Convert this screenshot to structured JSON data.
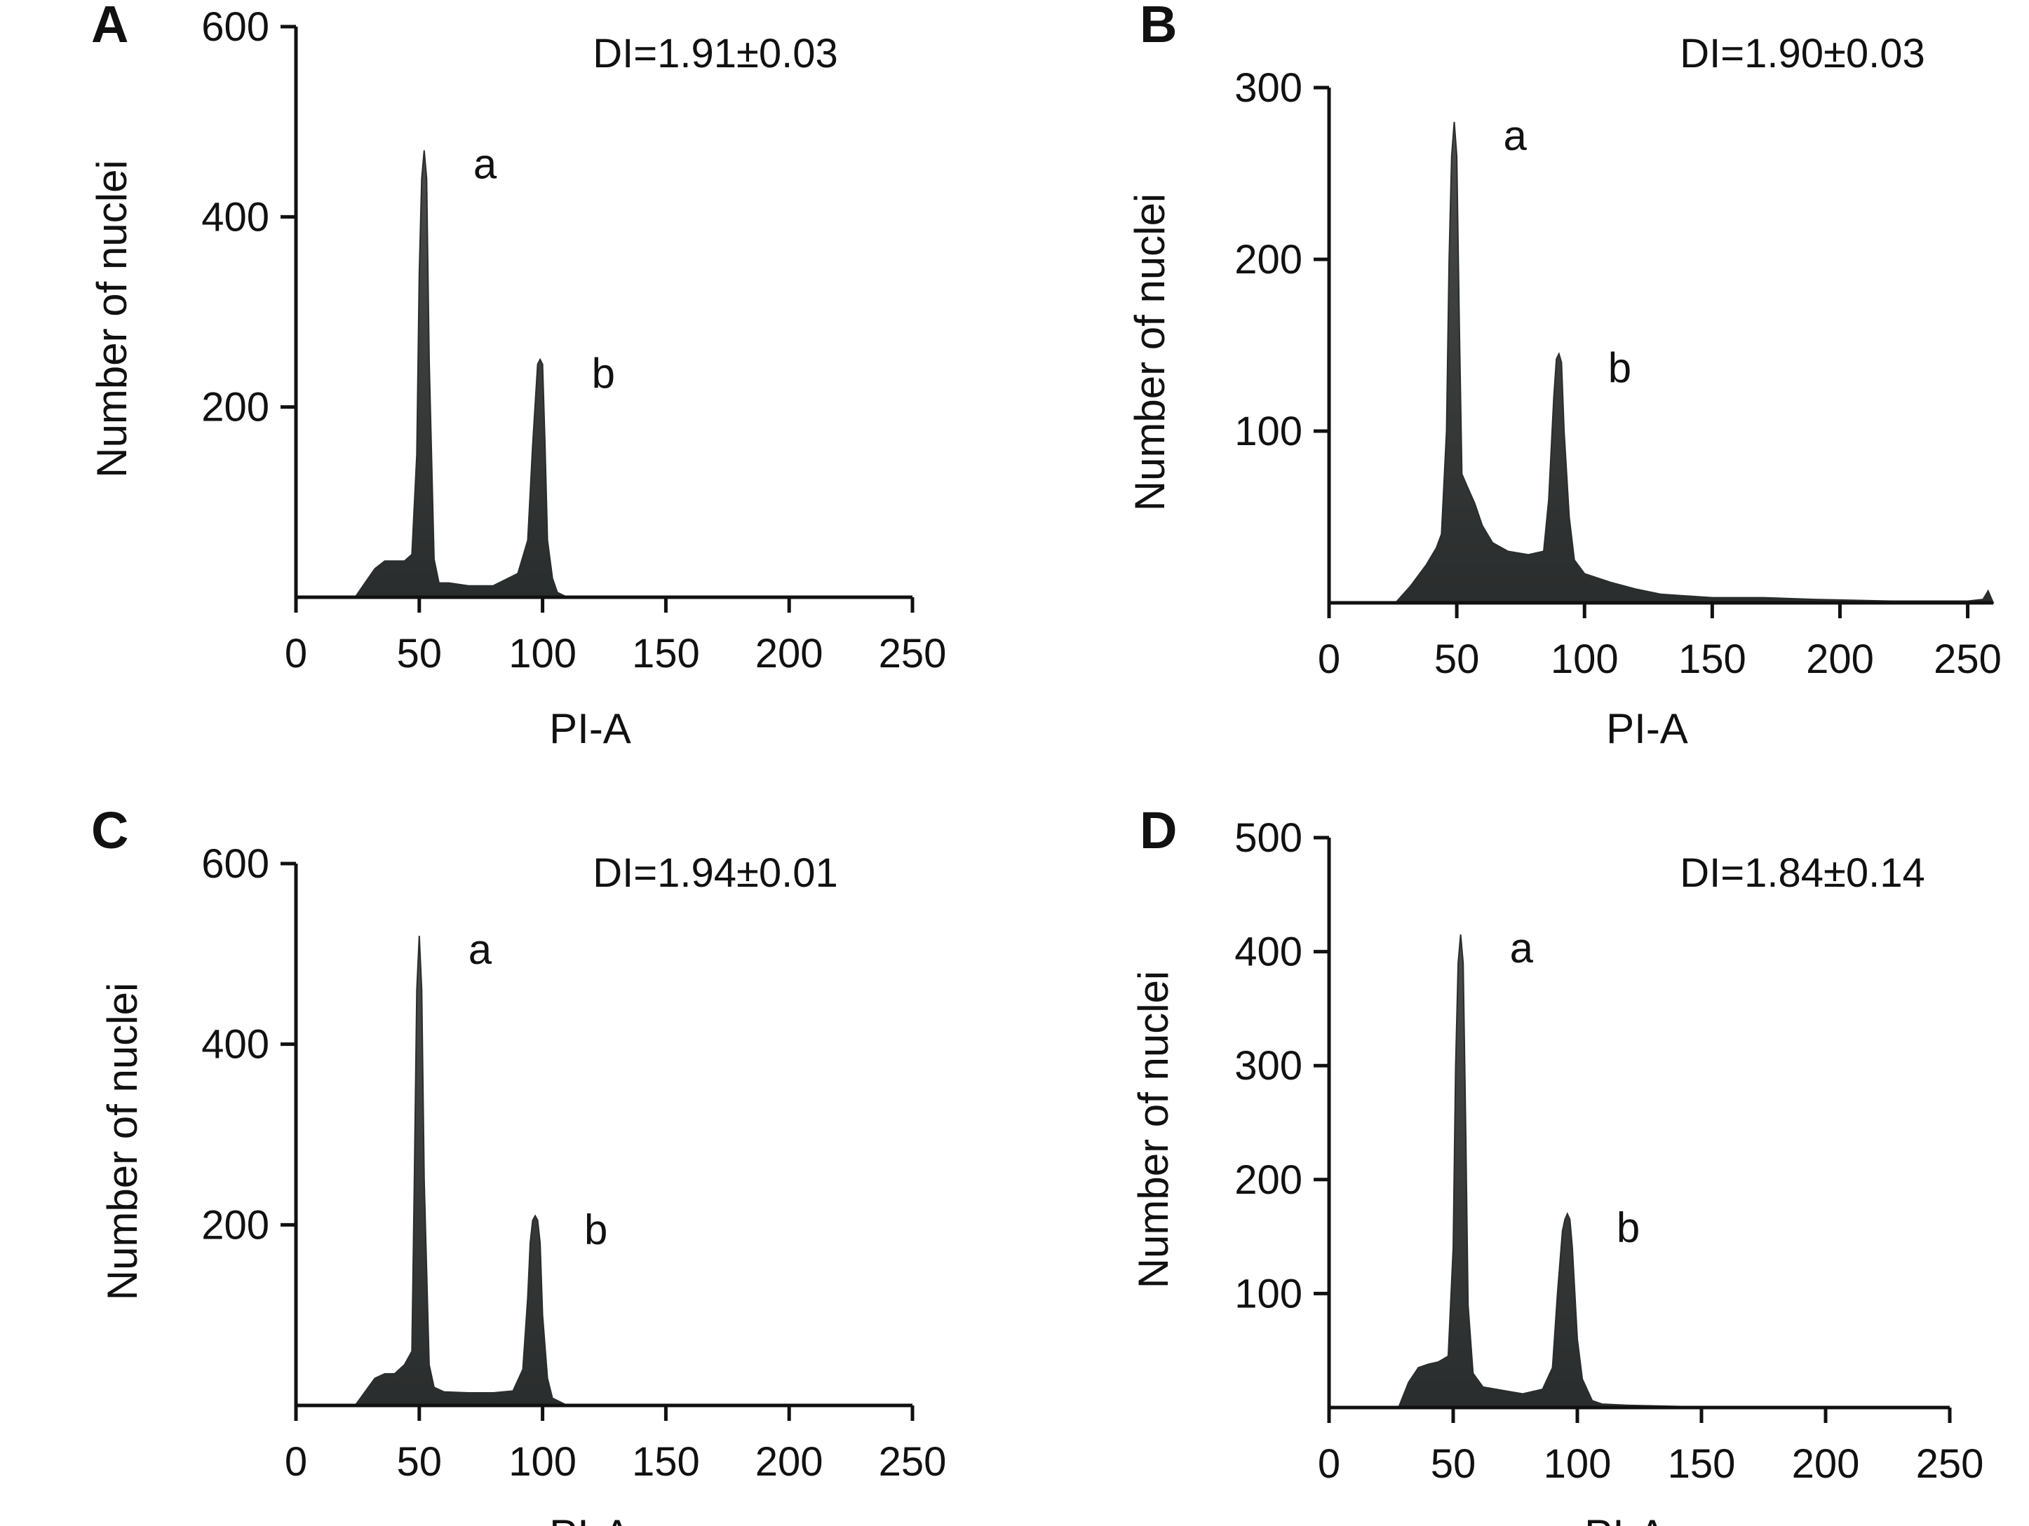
{
  "chart_data": [
    {
      "type": "area",
      "panel": "A",
      "annotation": "DI=1.91±0.03",
      "xlabel": "PI-A",
      "ylabel": "Number of nuclei",
      "xlim": [
        0,
        250
      ],
      "ylim": [
        0,
        600
      ],
      "xticks": [
        0,
        50,
        100,
        150,
        200,
        250
      ],
      "yticks": [
        200,
        400,
        600
      ],
      "peaks": [
        {
          "label": "a",
          "x": 52,
          "y": 470
        },
        {
          "label": "b",
          "x": 100,
          "y": 250
        }
      ],
      "x": [
        0,
        24,
        28,
        32,
        36,
        40,
        44,
        47,
        49,
        50,
        51,
        52,
        53,
        54,
        56,
        58,
        62,
        70,
        80,
        90,
        94,
        96,
        98,
        99,
        100,
        101,
        102,
        104,
        106,
        110,
        120,
        250
      ],
      "y": [
        0,
        0,
        15,
        30,
        38,
        38,
        38,
        45,
        150,
        340,
        440,
        470,
        440,
        250,
        40,
        15,
        15,
        12,
        12,
        25,
        60,
        160,
        245,
        250,
        245,
        160,
        60,
        20,
        5,
        0,
        0,
        0
      ]
    },
    {
      "type": "area",
      "panel": "B",
      "annotation": "DI=1.90±0.03",
      "xlabel": "PI-A",
      "ylabel": "Number of nuclei",
      "xlim": [
        0,
        260
      ],
      "ylim": [
        0,
        300
      ],
      "xticks": [
        0,
        50,
        100,
        150,
        200,
        250
      ],
      "yticks": [
        100,
        200,
        300
      ],
      "peaks": [
        {
          "label": "a",
          "x": 49,
          "y": 280
        },
        {
          "label": "b",
          "x": 90,
          "y": 145
        }
      ],
      "x": [
        0,
        26,
        32,
        38,
        42,
        44,
        46,
        47,
        48,
        49,
        50,
        51,
        52,
        54,
        57,
        60,
        64,
        70,
        78,
        84,
        86,
        88,
        89,
        90,
        91,
        92,
        94,
        96,
        100,
        110,
        120,
        130,
        140,
        150,
        170,
        190,
        220,
        250,
        256,
        258,
        260
      ],
      "y": [
        0,
        0,
        10,
        22,
        32,
        40,
        100,
        200,
        260,
        280,
        260,
        160,
        75,
        68,
        58,
        45,
        35,
        30,
        28,
        30,
        60,
        120,
        142,
        145,
        140,
        100,
        50,
        25,
        17,
        12,
        8,
        5,
        4,
        3,
        3,
        2,
        1,
        1,
        2,
        7,
        0
      ]
    },
    {
      "type": "area",
      "panel": "C",
      "annotation": "DI=1.94±0.01",
      "xlabel": "PI-A",
      "ylabel": "Number of nuclei",
      "xlim": [
        0,
        250
      ],
      "ylim": [
        0,
        600
      ],
      "xticks": [
        0,
        50,
        100,
        150,
        200,
        250
      ],
      "yticks": [
        200,
        400,
        600
      ],
      "peaks": [
        {
          "label": "a",
          "x": 50,
          "y": 520
        },
        {
          "label": "b",
          "x": 97,
          "y": 210
        }
      ],
      "x": [
        0,
        24,
        28,
        32,
        36,
        40,
        44,
        47,
        48,
        49,
        50,
        51,
        52,
        54,
        56,
        60,
        70,
        80,
        88,
        92,
        94,
        95,
        96,
        97,
        98,
        99,
        100,
        102,
        104,
        110,
        120,
        250
      ],
      "y": [
        0,
        0,
        15,
        30,
        35,
        35,
        45,
        60,
        250,
        460,
        520,
        460,
        250,
        45,
        20,
        15,
        14,
        14,
        16,
        40,
        120,
        180,
        205,
        210,
        205,
        180,
        100,
        30,
        8,
        0,
        0,
        0
      ]
    },
    {
      "type": "area",
      "panel": "D",
      "annotation": "DI=1.84±0.14",
      "xlabel": "PI-A",
      "ylabel": "Number of nuclei",
      "xlim": [
        0,
        250
      ],
      "ylim": [
        0,
        500
      ],
      "xticks": [
        0,
        50,
        100,
        150,
        200,
        250
      ],
      "yticks": [
        100,
        200,
        300,
        400,
        500
      ],
      "peaks": [
        {
          "label": "a",
          "x": 53,
          "y": 415
        },
        {
          "label": "b",
          "x": 96,
          "y": 170
        }
      ],
      "x": [
        0,
        28,
        32,
        36,
        40,
        44,
        48,
        50,
        51,
        52,
        53,
        54,
        55,
        56,
        58,
        62,
        70,
        78,
        86,
        90,
        92,
        94,
        95,
        96,
        97,
        98,
        100,
        102,
        106,
        110,
        120,
        140,
        160,
        250
      ],
      "y": [
        0,
        0,
        22,
        35,
        38,
        40,
        45,
        140,
        300,
        390,
        415,
        390,
        250,
        90,
        30,
        18,
        15,
        12,
        16,
        35,
        100,
        155,
        165,
        170,
        165,
        140,
        60,
        25,
        6,
        3,
        2,
        1,
        0,
        0
      ]
    }
  ]
}
